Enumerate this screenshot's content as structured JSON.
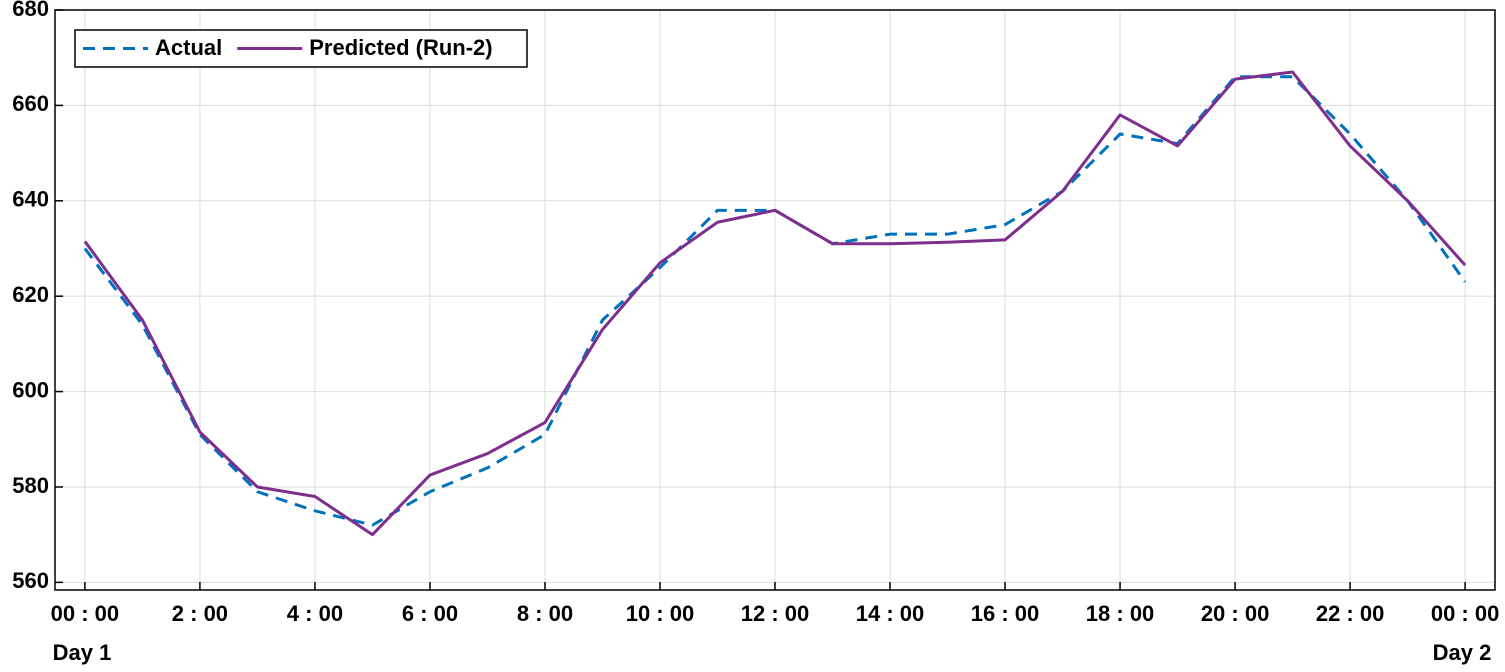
{
  "chart_data": {
    "type": "line",
    "x": [
      0,
      1,
      2,
      3,
      4,
      5,
      6,
      7,
      8,
      9,
      10,
      11,
      12,
      13,
      14,
      15,
      16,
      17,
      18,
      19,
      20,
      21,
      22,
      23,
      24
    ],
    "series": [
      {
        "name": "Actual",
        "color": "#0072bd",
        "style": "dashed",
        "values": [
          630,
          614,
          591,
          579,
          575,
          572,
          579,
          584,
          591,
          615,
          626,
          638,
          638,
          631,
          633,
          633,
          635,
          642,
          654,
          652,
          666,
          666,
          654,
          640,
          623
        ]
      },
      {
        "name": "Predicted (Run-2)",
        "color": "#7e2f8e",
        "style": "solid",
        "values": [
          631.5,
          615,
          591.5,
          580,
          578,
          570,
          582.5,
          587,
          593.5,
          613,
          627,
          635.5,
          638,
          631,
          631,
          631.3,
          631.8,
          642,
          658,
          651.5,
          665.5,
          667,
          651.5,
          640,
          626.5
        ]
      }
    ],
    "xlim": [
      -0.52,
      24.52
    ],
    "xticks": [
      {
        "value": 0,
        "label": "00 : 00"
      },
      {
        "value": 2,
        "label": "2 : 00"
      },
      {
        "value": 4,
        "label": "4 : 00"
      },
      {
        "value": 6,
        "label": "6 : 00"
      },
      {
        "value": 8,
        "label": "8 : 00"
      },
      {
        "value": 10,
        "label": "10 : 00"
      },
      {
        "value": 12,
        "label": "12 : 00"
      },
      {
        "value": 14,
        "label": "14 : 00"
      },
      {
        "value": 16,
        "label": "16 : 00"
      },
      {
        "value": 18,
        "label": "18 : 00"
      },
      {
        "value": 20,
        "label": "20 : 00"
      },
      {
        "value": 22,
        "label": "22 : 00"
      },
      {
        "value": 24,
        "label": "00 : 00"
      }
    ],
    "ylim": [
      558.4,
      680
    ],
    "yticks": [
      560,
      580,
      600,
      620,
      640,
      660,
      680
    ],
    "grid": true,
    "legend": "upper left",
    "annotations": [
      "Day 1",
      "Day 2"
    ]
  }
}
